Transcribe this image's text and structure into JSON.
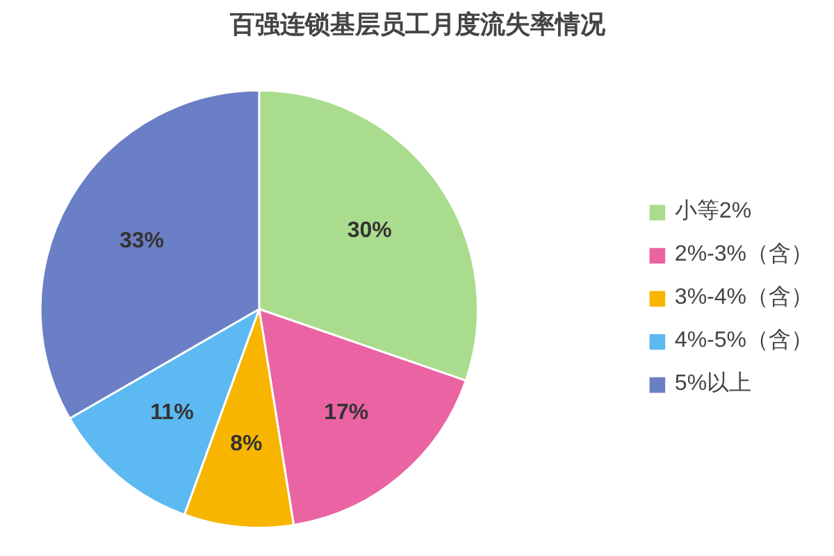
{
  "chart_data": {
    "type": "pie",
    "title": "百强连锁基层员工月度流失率情况",
    "categories": [
      "小等2%",
      "2%-3%（含）",
      "3%-4%（含）",
      "4%-5%（含）",
      "5%以上"
    ],
    "values": [
      30,
      17,
      8,
      11,
      33
    ],
    "value_labels": [
      "30%",
      "17%",
      "8%",
      "11%",
      "33%"
    ],
    "colors": [
      "#a9dc8c",
      "#ea63a2",
      "#f7b500",
      "#5cb9f1",
      "#6b7fc6"
    ],
    "legend": "right"
  }
}
